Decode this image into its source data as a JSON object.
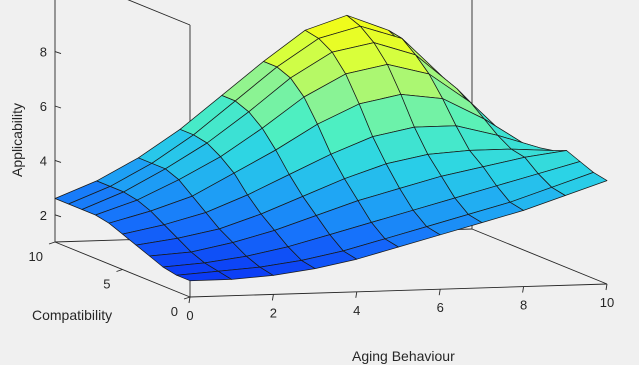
{
  "chart_data": {
    "type": "surface",
    "title": "",
    "xlabel": "Aging  Behaviour",
    "ylabel": "Compatibility",
    "zlabel": "Applicability",
    "xlim": [
      0,
      10
    ],
    "ylim": [
      0,
      10
    ],
    "zlim": [
      1,
      9
    ],
    "x_ticks": [
      "0",
      "2",
      "4",
      "6",
      "8",
      "10"
    ],
    "y_ticks": [
      "0",
      "5",
      "10"
    ],
    "z_ticks": [
      "2",
      "4",
      "6",
      "8"
    ],
    "colormap": [
      "#0b3af5",
      "#1670fb",
      "#1fa6f4",
      "#2bd3e6",
      "#4ff0c0",
      "#98f48a",
      "#d9ff3a",
      "#f9fb0e"
    ],
    "grid": "off",
    "x": [
      0,
      1,
      2,
      3,
      4,
      5,
      6,
      7,
      8,
      9,
      10
    ],
    "y": [
      0,
      1,
      2,
      3,
      4,
      5,
      6,
      7,
      8,
      9,
      10
    ],
    "z": [
      [
        1.6,
        1.6,
        1.7,
        1.9,
        2.2,
        2.6,
        3.0,
        3.4,
        3.8,
        4.3,
        4.8
      ],
      [
        1.6,
        1.7,
        1.8,
        2.0,
        2.3,
        2.7,
        3.1,
        3.5,
        3.9,
        4.4,
        4.9
      ],
      [
        1.7,
        1.8,
        2.0,
        2.3,
        2.7,
        3.1,
        3.5,
        3.9,
        4.3,
        4.7,
        5.1
      ],
      [
        1.9,
        2.0,
        2.3,
        2.7,
        3.2,
        3.7,
        4.1,
        4.5,
        4.8,
        5.1,
        5.3
      ],
      [
        2.1,
        2.3,
        2.6,
        3.1,
        3.7,
        4.3,
        4.8,
        5.1,
        5.2,
        5.2,
        5.1
      ],
      [
        2.3,
        2.6,
        3.0,
        3.6,
        4.3,
        5.0,
        5.6,
        5.9,
        5.9,
        5.5,
        5.0
      ],
      [
        2.5,
        2.9,
        3.4,
        4.2,
        5.0,
        5.9,
        6.6,
        6.9,
        6.7,
        5.9,
        4.9
      ],
      [
        2.6,
        3.1,
        3.8,
        4.6,
        5.6,
        6.7,
        7.5,
        7.8,
        7.4,
        6.3,
        4.8
      ],
      [
        2.6,
        3.2,
        4.0,
        4.9,
        6.0,
        7.2,
        8.1,
        8.4,
        7.9,
        6.6,
        4.8
      ],
      [
        2.6,
        3.2,
        4.0,
        5.0,
        6.2,
        7.4,
        8.4,
        8.8,
        8.3,
        6.8,
        4.8
      ],
      [
        2.6,
        3.2,
        4.0,
        5.0,
        6.2,
        7.4,
        8.5,
        9.0,
        8.4,
        6.9,
        4.8
      ]
    ]
  }
}
